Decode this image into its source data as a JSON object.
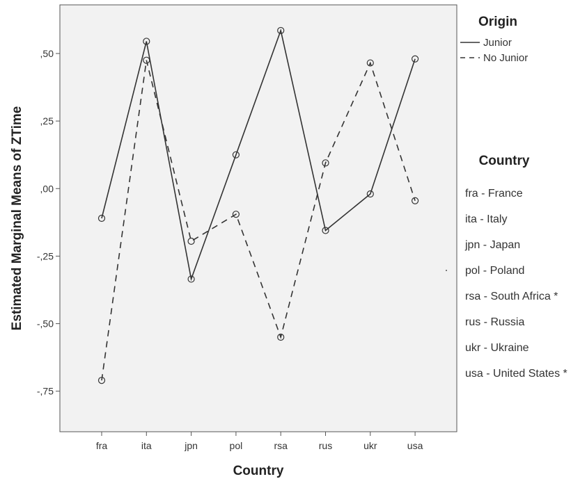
{
  "chart_data": {
    "type": "line",
    "xlabel": "Country",
    "ylabel": "Estimated Marginal Means of ZTime",
    "categories": [
      "fra",
      "ita",
      "jpn",
      "pol",
      "rsa",
      "rus",
      "ukr",
      "usa"
    ],
    "ylim": [
      -0.9,
      0.68
    ],
    "yticks": [
      0.5,
      0.25,
      0.0,
      -0.25,
      -0.5,
      -0.75
    ],
    "ytick_labels": [
      ",50",
      ",25",
      ",00",
      "-,25",
      "-,50",
      "-,75"
    ],
    "series": [
      {
        "name": "Junior",
        "line_style": "solid",
        "values": [
          -0.11,
          0.545,
          -0.335,
          0.125,
          0.585,
          -0.155,
          -0.02,
          0.48
        ]
      },
      {
        "name": "No Junior",
        "line_style": "dashed",
        "values": [
          -0.71,
          0.475,
          -0.195,
          -0.095,
          -0.55,
          0.095,
          0.465,
          -0.045
        ]
      }
    ],
    "grid": false,
    "legend": {
      "title": "Origin",
      "placement": "right-top"
    },
    "country_key": {
      "title": "Country",
      "entries": [
        "fra - France",
        "ita - Italy",
        "jpn - Japan",
        "pol - Poland",
        "rsa - South Africa *",
        "rus - Russia",
        "ukr - Ukraine",
        "usa - United States *"
      ]
    },
    "colors": {
      "plot_background": "#f2f2f2",
      "line": "#333333",
      "frame": "#555555"
    }
  }
}
